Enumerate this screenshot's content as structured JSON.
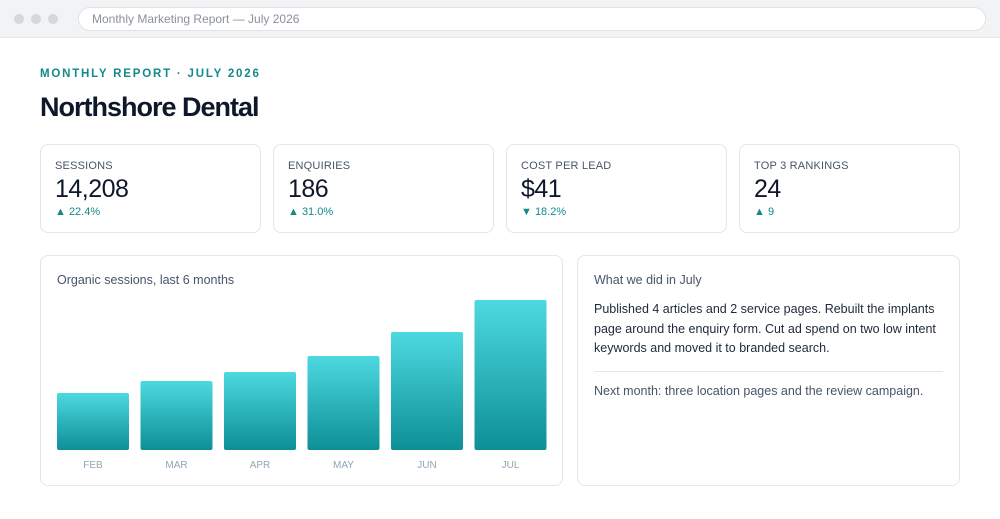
{
  "browser": {
    "address": "Monthly Marketing Report — July 2026"
  },
  "header": {
    "eyebrow": "MONTHLY REPORT · JULY 2026",
    "title": "Northshore Dental"
  },
  "kpis": [
    {
      "label": "SESSIONS",
      "value": "14,208",
      "delta": "▲ 22.4%"
    },
    {
      "label": "ENQUIRIES",
      "value": "186",
      "delta": "▲ 31.0%"
    },
    {
      "label": "COST PER LEAD",
      "value": "$41",
      "delta": "▼ 18.2%"
    },
    {
      "label": "TOP 3 RANKINGS",
      "value": "24",
      "delta": "▲ 9"
    }
  ],
  "chart_panel": {
    "title": "Organic sessions, last 6 months"
  },
  "chart_data": {
    "type": "bar",
    "categories": [
      "FEB",
      "MAR",
      "APR",
      "MAY",
      "JUN",
      "JUL"
    ],
    "values": [
      57,
      69,
      78,
      94,
      118,
      150
    ],
    "title": "Organic sessions, last 6 months",
    "xlabel": "",
    "ylabel": "",
    "ylim": [
      0,
      150
    ],
    "grid": false,
    "colors": {
      "top": "#4dd9e0",
      "bottom": "#0d8f96"
    }
  },
  "notes_panel": {
    "title": "What we did in July",
    "body": "Published 4 articles and 2 service pages. Rebuilt the implants page around the enquiry form. Cut ad spend on two low intent keywords and moved it to branded search.",
    "next": "Next month: three location pages and the review campaign."
  }
}
